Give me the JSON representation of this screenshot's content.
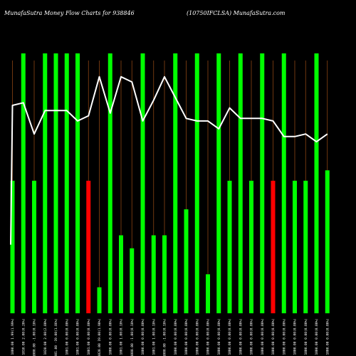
{
  "chart_data": {
    "type": "bar",
    "title_left": "MunafaSutra Money Flow Charts for 938846",
    "title_right": "(10750IFCLSA) MunafaSutra.com",
    "colors": {
      "background": "#000000",
      "green": "#00ff00",
      "red": "#ff0000",
      "line": "#ffffff",
      "gridline": "#8b4513"
    },
    "ylim": [
      0,
      100
    ],
    "line_ylim": [
      0,
      100
    ],
    "categories": [
      "1000.00 1.99(1.99%)",
      "1010.00 2.00(0.20%)",
      "1000.00 -1.00(0.10%)",
      "1020.00 2.00(2.00%)",
      "1001.00 -19.00(1.86%)",
      "1001.00 0.00(0.00%)",
      "1001.00 0.00(0.00%)",
      "1001.00 0.00(0.00%)",
      "1020.00 19.00(1.90%)",
      "1000.00 0.00(0.00%)",
      "1001.00 1.00(0.10%)",
      "1000.00 -1.00(0.10%)",
      "1000.00 0.00(0.00%)",
      "1001.00 1.00(0.10%)",
      "1000.00 -1.00(0.10%)",
      "1000.00 0.00(0.00%)",
      "1000.00 0.00(0.00%)",
      "1000.00 0.00(0.00%)",
      "1000.00 0.00(0.00%)",
      "1000.00 0.00(0.00%)",
      "1000.00 0.00(0.00%)",
      "1000.00 0.00(0.00%)",
      "1000.00 0.00(0.00%)",
      "1000.00 0.00(0.00%)",
      "1000.00 0.00(0.00%)",
      "1000.00 0.00(0.00%)",
      "1000.00 0.00(0.00%)",
      "1000.00 0.00(0.00%)",
      "1000.00 0.00(0.00%)",
      "1000.00 0.00(0.00%)"
    ],
    "bar_values": [
      51,
      100,
      51,
      100,
      100,
      100,
      100,
      51,
      10,
      100,
      30,
      25,
      100,
      30,
      30,
      100,
      40,
      100,
      15,
      100,
      51,
      100,
      51,
      100,
      51,
      100,
      51,
      51,
      100,
      55
    ],
    "bar_colors": [
      "green",
      "green",
      "green",
      "green",
      "green",
      "green",
      "green",
      "red",
      "green",
      "green",
      "green",
      "green",
      "green",
      "green",
      "green",
      "green",
      "green",
      "green",
      "green",
      "green",
      "green",
      "green",
      "green",
      "green",
      "red",
      "green",
      "green",
      "green",
      "green",
      "green"
    ],
    "line_values": [
      80,
      81,
      69,
      78,
      78,
      78,
      74,
      76,
      91,
      77,
      91,
      89,
      74,
      82,
      91,
      83,
      75,
      74,
      74,
      71,
      79,
      75,
      75,
      75,
      74,
      68,
      68,
      69,
      66,
      69
    ]
  }
}
